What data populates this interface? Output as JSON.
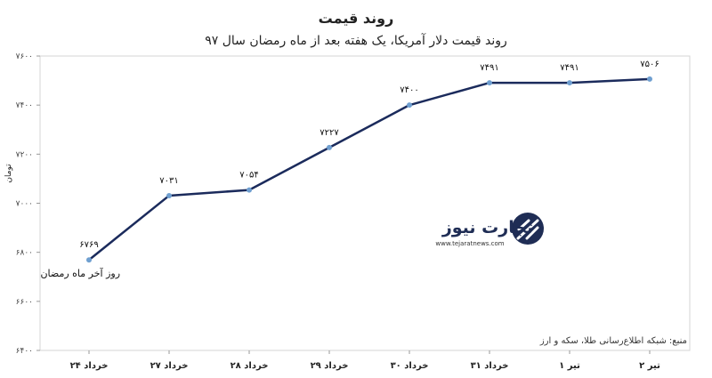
{
  "chart_data": {
    "type": "line",
    "title": "روند قیمت",
    "subtitle": "روند قیمت دلار آمریکا، یک هفته بعد از ماه رمضان سال ۹۷",
    "ylabel": "تومان",
    "xlabel": "",
    "categories": [
      "۲۴ خرداد",
      "۲۷ خرداد",
      "۲۸ خرداد",
      "۲۹ خرداد",
      "۳۰ خرداد",
      "۳۱ خرداد",
      "۱ تیر",
      "۲ تیر"
    ],
    "values": [
      6769,
      7031,
      7054,
      7227,
      7400,
      7491,
      7491,
      7506
    ],
    "value_labels": [
      "۶۷۶۹",
      "۷۰۳۱",
      "۷۰۵۴",
      "۷۲۲۷",
      "۷۴۰۰",
      "۷۴۹۱",
      "۷۴۹۱",
      "۷۵۰۶"
    ],
    "ylim": [
      6400,
      7600
    ],
    "yticks": [
      6400,
      6600,
      6800,
      7000,
      7200,
      7400,
      7600
    ],
    "ytick_labels": [
      "۶۴۰۰",
      "۶۶۰۰",
      "۶۸۰۰",
      "۷۰۰۰",
      "۷۲۰۰",
      "۷۴۰۰",
      "۷۶۰۰"
    ],
    "grid": false,
    "annotation": "روز آخر ماه رمضان",
    "source": "منبع: شبکه اطلاع‌رسانی طلا، سکه و ارز",
    "line_color": "#1b2b5c",
    "marker_color": "#6f9fd0"
  },
  "logo": {
    "name": "تجارت نیوز",
    "url": "www.tejaratnews.com",
    "brand_color": "#e0302d",
    "dark_color": "#1f2d55"
  }
}
